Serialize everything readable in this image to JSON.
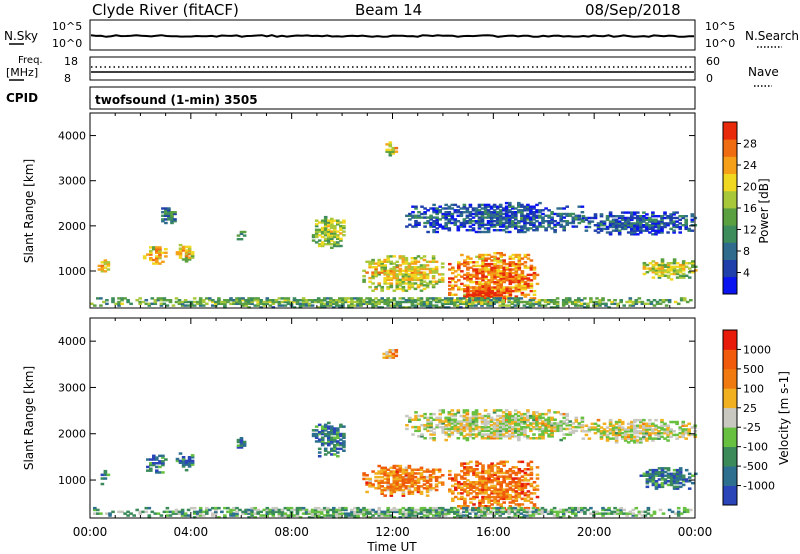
{
  "header": {
    "station": "Clyde River (fitACF)",
    "beam": "Beam 14",
    "date": "08/Sep/2018"
  },
  "housekeeping": {
    "nsky_label": "N.Sky",
    "nsearch_label": "N.Search",
    "nsky_ticks": [
      "10^5",
      "10^0"
    ],
    "nsearch_ticks": [
      "10^5",
      "10^0"
    ],
    "freq_label": "Freq.",
    "freq_unit": "[MHz]",
    "freq_ticks": [
      "18",
      "8"
    ],
    "nave_label": "Nave",
    "nave_ticks": [
      "60",
      "0"
    ],
    "cpid_label": "CPID",
    "cpid_text": "twofsound (1-min) 3505"
  },
  "chart_data": [
    {
      "type": "heatmap",
      "name": "power",
      "ylabel": "Slant Range [km]",
      "xlabel": "Time UT",
      "x_ticks": [
        "00:00",
        "04:00",
        "08:00",
        "12:00",
        "16:00",
        "20:00",
        "00:00"
      ],
      "x_range_hours": [
        0,
        24
      ],
      "y_ticks": [
        1000,
        2000,
        3000,
        4000
      ],
      "ylim": [
        180,
        4500
      ],
      "colorbar": {
        "label": "Power [dB]",
        "ticks": [
          "4",
          "8",
          "12",
          "16",
          "20",
          "24",
          "28"
        ],
        "colors": [
          "#0a14f0",
          "#1f3faa",
          "#2e6b8c",
          "#3c8c5c",
          "#5aa040",
          "#a8c83a",
          "#f0d820",
          "#f5a018",
          "#f06c10",
          "#e82a0a"
        ]
      },
      "regions": [
        {
          "t0": 0.3,
          "t1": 0.7,
          "r0": 900,
          "r1": 1250,
          "level": 0.55
        },
        {
          "t0": 2.1,
          "t1": 3.0,
          "r0": 1150,
          "r1": 1550,
          "level": 0.62
        },
        {
          "t0": 3.4,
          "t1": 4.1,
          "r0": 1200,
          "r1": 1600,
          "level": 0.58
        },
        {
          "t0": 5.7,
          "t1": 6.1,
          "r0": 1650,
          "r1": 1900,
          "level": 0.3
        },
        {
          "t0": 2.7,
          "t1": 3.4,
          "r0": 2050,
          "r1": 2450,
          "level": 0.2
        },
        {
          "t0": 8.8,
          "t1": 10.1,
          "r0": 1500,
          "r1": 2250,
          "level": 0.45
        },
        {
          "t0": 10.8,
          "t1": 14.0,
          "r0": 550,
          "r1": 1350,
          "level": 0.55
        },
        {
          "t0": 14.2,
          "t1": 17.8,
          "r0": 300,
          "r1": 1400,
          "level": 0.72
        },
        {
          "t0": 14.8,
          "t1": 16.6,
          "r0": 300,
          "r1": 650,
          "level": 0.9
        },
        {
          "t0": 12.5,
          "t1": 19.5,
          "r0": 1850,
          "r1": 2500,
          "level": 0.12
        },
        {
          "t0": 19.5,
          "t1": 24.0,
          "r0": 1800,
          "r1": 2300,
          "level": 0.12
        },
        {
          "t0": 21.8,
          "t1": 24.0,
          "r0": 800,
          "r1": 1250,
          "level": 0.5
        },
        {
          "t0": 11.6,
          "t1": 12.1,
          "r0": 3550,
          "r1": 3850,
          "level": 0.55
        },
        {
          "t0": 0.0,
          "t1": 24.0,
          "r0": 180,
          "r1": 420,
          "level": 0.35
        }
      ]
    },
    {
      "type": "heatmap",
      "name": "velocity",
      "ylabel": "Slant Range [km]",
      "xlabel": "Time UT",
      "x_ticks": [
        "00:00",
        "04:00",
        "08:00",
        "12:00",
        "16:00",
        "20:00",
        "00:00"
      ],
      "x_range_hours": [
        0,
        24
      ],
      "y_ticks": [
        1000,
        2000,
        3000,
        4000
      ],
      "ylim": [
        180,
        4500
      ],
      "colorbar": {
        "label": "Velocity [m s-1]",
        "ticks": [
          "1000",
          "500",
          "100",
          "25",
          "-25",
          "-100",
          "-500",
          "-1000"
        ],
        "colors": [
          "#2a45b8",
          "#2d6f8e",
          "#3a8a5a",
          "#68c040",
          "#c8c8c0",
          "#f0b020",
          "#f07a10",
          "#f05a0a",
          "#e81a0a"
        ]
      },
      "regions": [
        {
          "t0": 0.3,
          "t1": 0.7,
          "r0": 900,
          "r1": 1250,
          "level": 0.2
        },
        {
          "t0": 2.1,
          "t1": 3.0,
          "r0": 1150,
          "r1": 1550,
          "level": 0.18
        },
        {
          "t0": 3.4,
          "t1": 4.1,
          "r0": 1200,
          "r1": 1600,
          "level": 0.2
        },
        {
          "t0": 5.7,
          "t1": 6.1,
          "r0": 1650,
          "r1": 1900,
          "level": 0.22
        },
        {
          "t0": 8.8,
          "t1": 10.1,
          "r0": 1500,
          "r1": 2250,
          "level": 0.22
        },
        {
          "t0": 10.8,
          "t1": 14.0,
          "r0": 650,
          "r1": 1300,
          "level": 0.72
        },
        {
          "t0": 14.2,
          "t1": 17.8,
          "r0": 300,
          "r1": 1400,
          "level": 0.75
        },
        {
          "t0": 12.5,
          "t1": 19.5,
          "r0": 1850,
          "r1": 2500,
          "level": 0.5
        },
        {
          "t0": 19.5,
          "t1": 24.0,
          "r0": 1800,
          "r1": 2300,
          "level": 0.5
        },
        {
          "t0": 21.8,
          "t1": 24.0,
          "r0": 800,
          "r1": 1250,
          "level": 0.2
        },
        {
          "t0": 11.6,
          "t1": 12.1,
          "r0": 3550,
          "r1": 3850,
          "level": 0.65
        },
        {
          "t0": 0.0,
          "t1": 24.0,
          "r0": 180,
          "r1": 420,
          "level": 0.35
        }
      ]
    }
  ]
}
